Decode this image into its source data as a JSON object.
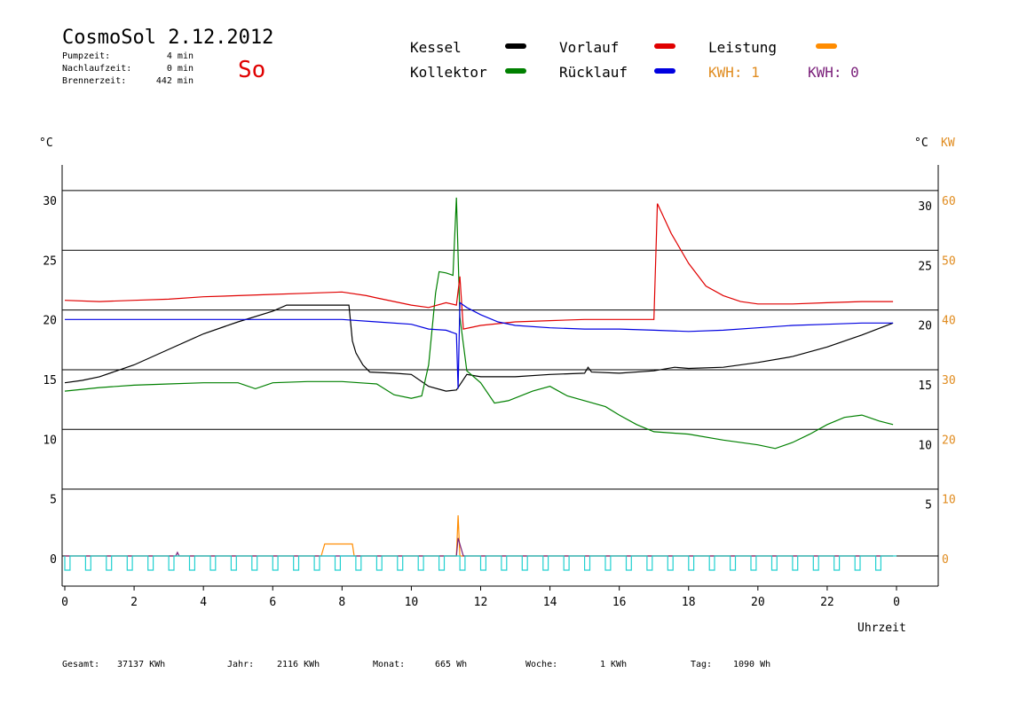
{
  "header": {
    "title": "CosmoSol 2.12.2012",
    "day": "So",
    "stats": [
      {
        "label": "Pumpzeit:",
        "value": "4 min"
      },
      {
        "label": "Nachlaufzeit:",
        "value": "0 min"
      },
      {
        "label": "Brennerzeit:",
        "value": "442 min"
      }
    ]
  },
  "legend": {
    "kessel": {
      "label": "Kessel",
      "color": "#000000"
    },
    "kollektor": {
      "label": "Kollektor",
      "color": "#008000"
    },
    "vorlauf": {
      "label": "Vorlauf",
      "color": "#e00000"
    },
    "ruecklauf": {
      "label": "Rücklauf",
      "color": "#0000e0"
    },
    "leistung": {
      "label": "Leistung",
      "color": "#ff8c00"
    },
    "kwh1": {
      "label": "KWH: 1",
      "color": "#e08c20"
    },
    "kwh2": {
      "label": "KWH: 0",
      "color": "#7a1f7a"
    }
  },
  "footer": [
    {
      "label": "Gesamt:",
      "value": "37137 KWh"
    },
    {
      "label": "Jahr:",
      "value": "2116 KWh"
    },
    {
      "label": "Monat:",
      "value": "665 Wh"
    },
    {
      "label": "Woche:",
      "value": "1 KWh"
    },
    {
      "label": "Tag:",
      "value": "1090 Wh"
    }
  ],
  "chart_data": {
    "type": "line",
    "xlabel": "Uhrzeit",
    "ylabel_left": "°C",
    "ylabel_right": "°C",
    "ylabel_right2": "KW",
    "x_ticks": [
      "0",
      "2",
      "4",
      "6",
      "8",
      "10",
      "12",
      "14",
      "16",
      "18",
      "20",
      "22",
      "0"
    ],
    "y_ticks_left": [
      "30",
      "25",
      "20",
      "15",
      "10",
      "5",
      "0"
    ],
    "y_ticks_right": [
      "30",
      "25",
      "20",
      "15",
      "10",
      "5"
    ],
    "y_ticks_kw": [
      "60",
      "50",
      "40",
      "30",
      "20",
      "10",
      "0"
    ],
    "xlim": [
      0,
      24
    ],
    "ylim": [
      0,
      30
    ],
    "grid": true,
    "series": [
      {
        "name": "Kessel",
        "color": "#000000",
        "points": [
          [
            0,
            14.5
          ],
          [
            0.5,
            14.7
          ],
          [
            1,
            15
          ],
          [
            1.5,
            15.5
          ],
          [
            2,
            16
          ],
          [
            3,
            17.3
          ],
          [
            4,
            18.6
          ],
          [
            5,
            19.6
          ],
          [
            6,
            20.5
          ],
          [
            6.4,
            21
          ],
          [
            8.2,
            21
          ],
          [
            8.3,
            18
          ],
          [
            8.4,
            17
          ],
          [
            8.6,
            16
          ],
          [
            8.8,
            15.4
          ],
          [
            9.5,
            15.3
          ],
          [
            10,
            15.2
          ],
          [
            10.5,
            14.2
          ],
          [
            11,
            13.8
          ],
          [
            11.3,
            13.9
          ],
          [
            11.6,
            15.2
          ],
          [
            12,
            15
          ],
          [
            12.5,
            15
          ],
          [
            13,
            15
          ],
          [
            14,
            15.2
          ],
          [
            15,
            15.3
          ],
          [
            15.1,
            15.8
          ],
          [
            15.2,
            15.4
          ],
          [
            16,
            15.3
          ],
          [
            17,
            15.5
          ],
          [
            17.6,
            15.8
          ],
          [
            18,
            15.7
          ],
          [
            19,
            15.8
          ],
          [
            20,
            16.2
          ],
          [
            21,
            16.7
          ],
          [
            22,
            17.5
          ],
          [
            23,
            18.5
          ],
          [
            23.9,
            19.5
          ]
        ]
      },
      {
        "name": "Kollektor",
        "color": "#008000",
        "points": [
          [
            0,
            13.8
          ],
          [
            1,
            14.1
          ],
          [
            2,
            14.3
          ],
          [
            3,
            14.4
          ],
          [
            4,
            14.5
          ],
          [
            5,
            14.5
          ],
          [
            5.5,
            14
          ],
          [
            6,
            14.5
          ],
          [
            7,
            14.6
          ],
          [
            8,
            14.6
          ],
          [
            8.5,
            14.5
          ],
          [
            9,
            14.4
          ],
          [
            9.5,
            13.5
          ],
          [
            10,
            13.2
          ],
          [
            10.3,
            13.4
          ],
          [
            10.5,
            16
          ],
          [
            10.7,
            22
          ],
          [
            10.8,
            23.8
          ],
          [
            11,
            23.7
          ],
          [
            11.2,
            23.5
          ],
          [
            11.3,
            30
          ],
          [
            11.4,
            20
          ],
          [
            11.6,
            15.5
          ],
          [
            12,
            14.5
          ],
          [
            12.4,
            12.8
          ],
          [
            12.8,
            13
          ],
          [
            13.5,
            13.8
          ],
          [
            14,
            14.2
          ],
          [
            14.5,
            13.4
          ],
          [
            15,
            13
          ],
          [
            15.6,
            12.5
          ],
          [
            16,
            11.8
          ],
          [
            16.5,
            11
          ],
          [
            17,
            10.4
          ],
          [
            18,
            10.2
          ],
          [
            19,
            9.7
          ],
          [
            20,
            9.3
          ],
          [
            20.5,
            9
          ],
          [
            21,
            9.5
          ],
          [
            21.5,
            10.2
          ],
          [
            22,
            11
          ],
          [
            22.5,
            11.6
          ],
          [
            23,
            11.8
          ],
          [
            23.5,
            11.3
          ],
          [
            23.9,
            11
          ]
        ]
      },
      {
        "name": "Vorlauf",
        "color": "#e00000",
        "points": [
          [
            0,
            21.4
          ],
          [
            1,
            21.3
          ],
          [
            2,
            21.4
          ],
          [
            3,
            21.5
          ],
          [
            4,
            21.7
          ],
          [
            5,
            21.8
          ],
          [
            6,
            21.9
          ],
          [
            7,
            22
          ],
          [
            8,
            22.1
          ],
          [
            8.7,
            21.8
          ],
          [
            9,
            21.6
          ],
          [
            10,
            21
          ],
          [
            10.5,
            20.8
          ],
          [
            11,
            21.2
          ],
          [
            11.3,
            21
          ],
          [
            11.4,
            23.4
          ],
          [
            11.5,
            19
          ],
          [
            12,
            19.3
          ],
          [
            13,
            19.6
          ],
          [
            14,
            19.7
          ],
          [
            15,
            19.8
          ],
          [
            16,
            19.8
          ],
          [
            17,
            19.8
          ],
          [
            17.1,
            29.5
          ],
          [
            17.5,
            27
          ],
          [
            18,
            24.5
          ],
          [
            18.5,
            22.6
          ],
          [
            19,
            21.8
          ],
          [
            19.5,
            21.3
          ],
          [
            20,
            21.1
          ],
          [
            21,
            21.1
          ],
          [
            22,
            21.2
          ],
          [
            23,
            21.3
          ],
          [
            23.9,
            21.3
          ]
        ]
      },
      {
        "name": "Rücklauf",
        "color": "#0000e0",
        "points": [
          [
            0,
            19.8
          ],
          [
            1,
            19.8
          ],
          [
            2,
            19.8
          ],
          [
            4,
            19.8
          ],
          [
            6,
            19.8
          ],
          [
            8,
            19.8
          ],
          [
            9,
            19.6
          ],
          [
            10,
            19.4
          ],
          [
            10.5,
            19
          ],
          [
            11,
            18.9
          ],
          [
            11.3,
            18.6
          ],
          [
            11.35,
            14
          ],
          [
            11.4,
            21.2
          ],
          [
            11.6,
            20.8
          ],
          [
            12,
            20.2
          ],
          [
            12.5,
            19.6
          ],
          [
            13,
            19.3
          ],
          [
            14,
            19.1
          ],
          [
            15,
            19
          ],
          [
            16,
            19
          ],
          [
            17,
            18.9
          ],
          [
            18,
            18.8
          ],
          [
            19,
            18.9
          ],
          [
            20,
            19.1
          ],
          [
            21,
            19.3
          ],
          [
            22,
            19.4
          ],
          [
            23,
            19.5
          ],
          [
            23.9,
            19.5
          ]
        ]
      },
      {
        "name": "Leistung",
        "color": "#ff8c00",
        "points": [
          [
            0,
            0
          ],
          [
            7.4,
            0
          ],
          [
            7.5,
            1
          ],
          [
            8.3,
            1
          ],
          [
            8.35,
            0
          ],
          [
            11.3,
            0
          ],
          [
            11.35,
            3.4
          ],
          [
            11.4,
            0
          ],
          [
            23.9,
            0
          ]
        ]
      },
      {
        "name": "KWH: 0",
        "color": "#7a1f7a",
        "points": [
          [
            0,
            0
          ],
          [
            3.2,
            0
          ],
          [
            3.25,
            0.3
          ],
          [
            3.3,
            0
          ],
          [
            11.3,
            0
          ],
          [
            11.35,
            1.5
          ],
          [
            11.5,
            0
          ],
          [
            23.9,
            0
          ]
        ]
      }
    ]
  }
}
